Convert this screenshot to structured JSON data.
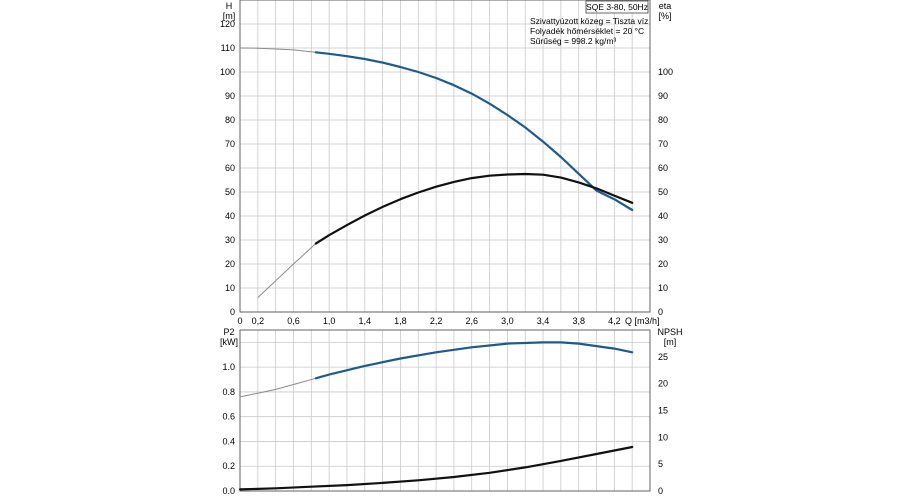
{
  "chart_data": [
    {
      "type": "line",
      "panel": "top",
      "title_box": "SQE 3-80, 50Hz",
      "info_lines": [
        "Szivattyúzott közeg = Tiszta víz",
        "Folyadék hőmérséklet = 20 °C",
        "Sűrűség = 998.2 kg/m³"
      ],
      "ylabel_left": [
        "H",
        "[m]"
      ],
      "ylabel_right": [
        "eta",
        "[%]"
      ],
      "xlabel": "Q [m3/h]",
      "x_ticks": [
        "0",
        "0,2",
        "0,6",
        "1,0",
        "1,4",
        "1,8",
        "2,2",
        "2,6",
        "3,0",
        "3,4",
        "3,8",
        "4,2"
      ],
      "x_tick_values": [
        0,
        0.2,
        0.6,
        1.0,
        1.4,
        1.8,
        2.2,
        2.6,
        3.0,
        3.4,
        3.8,
        4.2
      ],
      "xlim": [
        0,
        4.6
      ],
      "ylim_left": [
        0,
        130
      ],
      "ylim_right": [
        0,
        130
      ],
      "y_ticks_left": [
        0,
        10,
        20,
        30,
        40,
        50,
        60,
        70,
        80,
        90,
        100,
        110,
        120
      ],
      "y_ticks_right": [
        0,
        10,
        20,
        30,
        40,
        50,
        60,
        70,
        80,
        90,
        100
      ],
      "grid": true,
      "series": [
        {
          "axis": "left",
          "color": "#1f5a8c",
          "thin_until": 0.85,
          "x": [
            0,
            0.2,
            0.4,
            0.6,
            0.85,
            1.0,
            1.2,
            1.4,
            1.6,
            1.8,
            2.0,
            2.2,
            2.4,
            2.6,
            2.8,
            3.0,
            3.2,
            3.4,
            3.6,
            3.8,
            4.0,
            4.2,
            4.4
          ],
          "values": [
            110,
            109.9,
            109.6,
            109.2,
            108.2,
            107.6,
            106.6,
            105.4,
            103.9,
            102.1,
            100.0,
            97.5,
            94.5,
            91.0,
            86.8,
            82.1,
            76.9,
            71.0,
            64.6,
            57.6,
            50.6,
            47.0,
            42.5
          ]
        },
        {
          "axis": "right",
          "color": "#111111",
          "thin_until": 0.85,
          "x": [
            0.2,
            0.4,
            0.6,
            0.85,
            1.0,
            1.2,
            1.4,
            1.6,
            1.8,
            2.0,
            2.2,
            2.4,
            2.6,
            2.8,
            3.0,
            3.2,
            3.4,
            3.6,
            3.8,
            4.0,
            4.2,
            4.4
          ],
          "values": [
            6,
            13,
            20,
            28.5,
            32,
            36.2,
            40.2,
            43.8,
            47.0,
            49.8,
            52.2,
            54.2,
            55.8,
            56.8,
            57.3,
            57.5,
            57.2,
            56.0,
            54.0,
            51.5,
            48.5,
            45.5
          ]
        }
      ]
    },
    {
      "type": "line",
      "panel": "bottom",
      "ylabel_left": [
        "P2",
        "[kW]"
      ],
      "ylabel_right": [
        "NPSH",
        "[m]"
      ],
      "xlim": [
        0,
        4.6
      ],
      "ylim_left": [
        0,
        1.3
      ],
      "ylim_right": [
        0,
        30
      ],
      "y_ticks_left": [
        "0.0",
        "0.2",
        "0.4",
        "0.6",
        "0.8",
        "1.0"
      ],
      "y_tick_values_left": [
        0,
        0.2,
        0.4,
        0.6,
        0.8,
        1.0
      ],
      "y_ticks_right": [
        0,
        5,
        10,
        15,
        20,
        25
      ],
      "grid": true,
      "series": [
        {
          "axis": "left",
          "color": "#1f5a8c",
          "thin_until": 0.85,
          "x": [
            0,
            0.2,
            0.4,
            0.6,
            0.85,
            1.0,
            1.4,
            1.8,
            2.2,
            2.6,
            3.0,
            3.4,
            3.6,
            3.8,
            4.0,
            4.2,
            4.4
          ],
          "values": [
            0.76,
            0.79,
            0.82,
            0.86,
            0.91,
            0.94,
            1.01,
            1.07,
            1.12,
            1.16,
            1.19,
            1.2,
            1.2,
            1.19,
            1.17,
            1.15,
            1.12
          ]
        },
        {
          "axis": "right",
          "color": "#111111",
          "thin_until": 0,
          "x": [
            0,
            0.4,
            0.8,
            1.2,
            1.6,
            2.0,
            2.4,
            2.8,
            3.2,
            3.6,
            4.0,
            4.4
          ],
          "values": [
            0.3,
            0.5,
            0.8,
            1.1,
            1.5,
            2.0,
            2.6,
            3.4,
            4.4,
            5.6,
            6.9,
            8.2
          ]
        }
      ]
    }
  ]
}
